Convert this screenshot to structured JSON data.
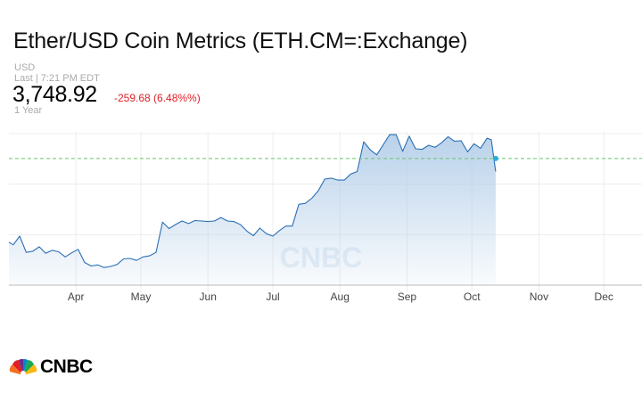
{
  "header": {
    "title": "Ether/USD Coin Metrics (ETH.CM=:Exchange)",
    "currency": "USD",
    "last_updated": "Last | 7:21 PM EDT",
    "price": "3,748.92",
    "change": "-259.68 (6.48%%)",
    "range": "1 Year"
  },
  "colors": {
    "line": "#2a6fb5",
    "fill_top": "#b5cfe9",
    "change_red": "#e21f26",
    "reference_line": "#6cc46c",
    "current_dot": "#29abe2"
  },
  "watermark": "CNBC",
  "footer_logo": "CNBC",
  "chart_data": {
    "type": "area",
    "title": "",
    "xlabel": "",
    "ylabel": "",
    "x_ticks": [
      "Apr",
      "May",
      "Jun",
      "Jul",
      "Aug",
      "Sep",
      "Oct",
      "Nov",
      "Dec"
    ],
    "ylim": [
      1500,
      4500
    ],
    "grid": true,
    "reference_line": {
      "value": 4008.6,
      "style": "dashed"
    },
    "series": [
      {
        "x": [
          "2021-03-01",
          "2021-03-03",
          "2021-03-06",
          "2021-03-09",
          "2021-03-12",
          "2021-03-15",
          "2021-03-18",
          "2021-03-21",
          "2021-03-24",
          "2021-03-27",
          "2021-03-30",
          "2021-04-02",
          "2021-04-05",
          "2021-04-08",
          "2021-04-11",
          "2021-04-14",
          "2021-04-17",
          "2021-04-20",
          "2021-04-23",
          "2021-04-26",
          "2021-04-29",
          "2021-05-02",
          "2021-05-05",
          "2021-05-08",
          "2021-05-11",
          "2021-05-14",
          "2021-05-17",
          "2021-05-20",
          "2021-05-23",
          "2021-05-26",
          "2021-05-29",
          "2021-06-01",
          "2021-06-04",
          "2021-06-07",
          "2021-06-10",
          "2021-06-13",
          "2021-06-16",
          "2021-06-19",
          "2021-06-22",
          "2021-06-25",
          "2021-06-28",
          "2021-07-01",
          "2021-07-04",
          "2021-07-07",
          "2021-07-10",
          "2021-07-13",
          "2021-07-16",
          "2021-07-19",
          "2021-07-22",
          "2021-07-25",
          "2021-07-28",
          "2021-07-31",
          "2021-08-03",
          "2021-08-06",
          "2021-08-09",
          "2021-08-12",
          "2021-08-15",
          "2021-08-18",
          "2021-08-21",
          "2021-08-24",
          "2021-08-27",
          "2021-08-30",
          "2021-09-02",
          "2021-09-05",
          "2021-09-08",
          "2021-09-11",
          "2021-09-14",
          "2021-09-17",
          "2021-09-20",
          "2021-09-23",
          "2021-09-26",
          "2021-09-29",
          "2021-10-02",
          "2021-10-05",
          "2021-10-08",
          "2021-10-10",
          "2021-10-12"
        ],
        "values": [
          2350,
          2300,
          2470,
          2150,
          2170,
          2260,
          2130,
          2190,
          2160,
          2060,
          2140,
          2210,
          1950,
          1880,
          1900,
          1850,
          1870,
          1910,
          2020,
          2030,
          1990,
          2060,
          2080,
          2150,
          2750,
          2620,
          2700,
          2770,
          2720,
          2780,
          2770,
          2760,
          2770,
          2840,
          2770,
          2760,
          2700,
          2570,
          2480,
          2630,
          2520,
          2470,
          2580,
          2670,
          2670,
          3100,
          3120,
          3220,
          3370,
          3600,
          3620,
          3580,
          3580,
          3700,
          3750,
          4340,
          4180,
          4080,
          4280,
          4480,
          4480,
          4150,
          4450,
          4200,
          4190,
          4270,
          4230,
          4320,
          4440,
          4350,
          4360,
          4140,
          4300,
          4210,
          4410,
          4380,
          3748.92
        ]
      }
    ]
  }
}
